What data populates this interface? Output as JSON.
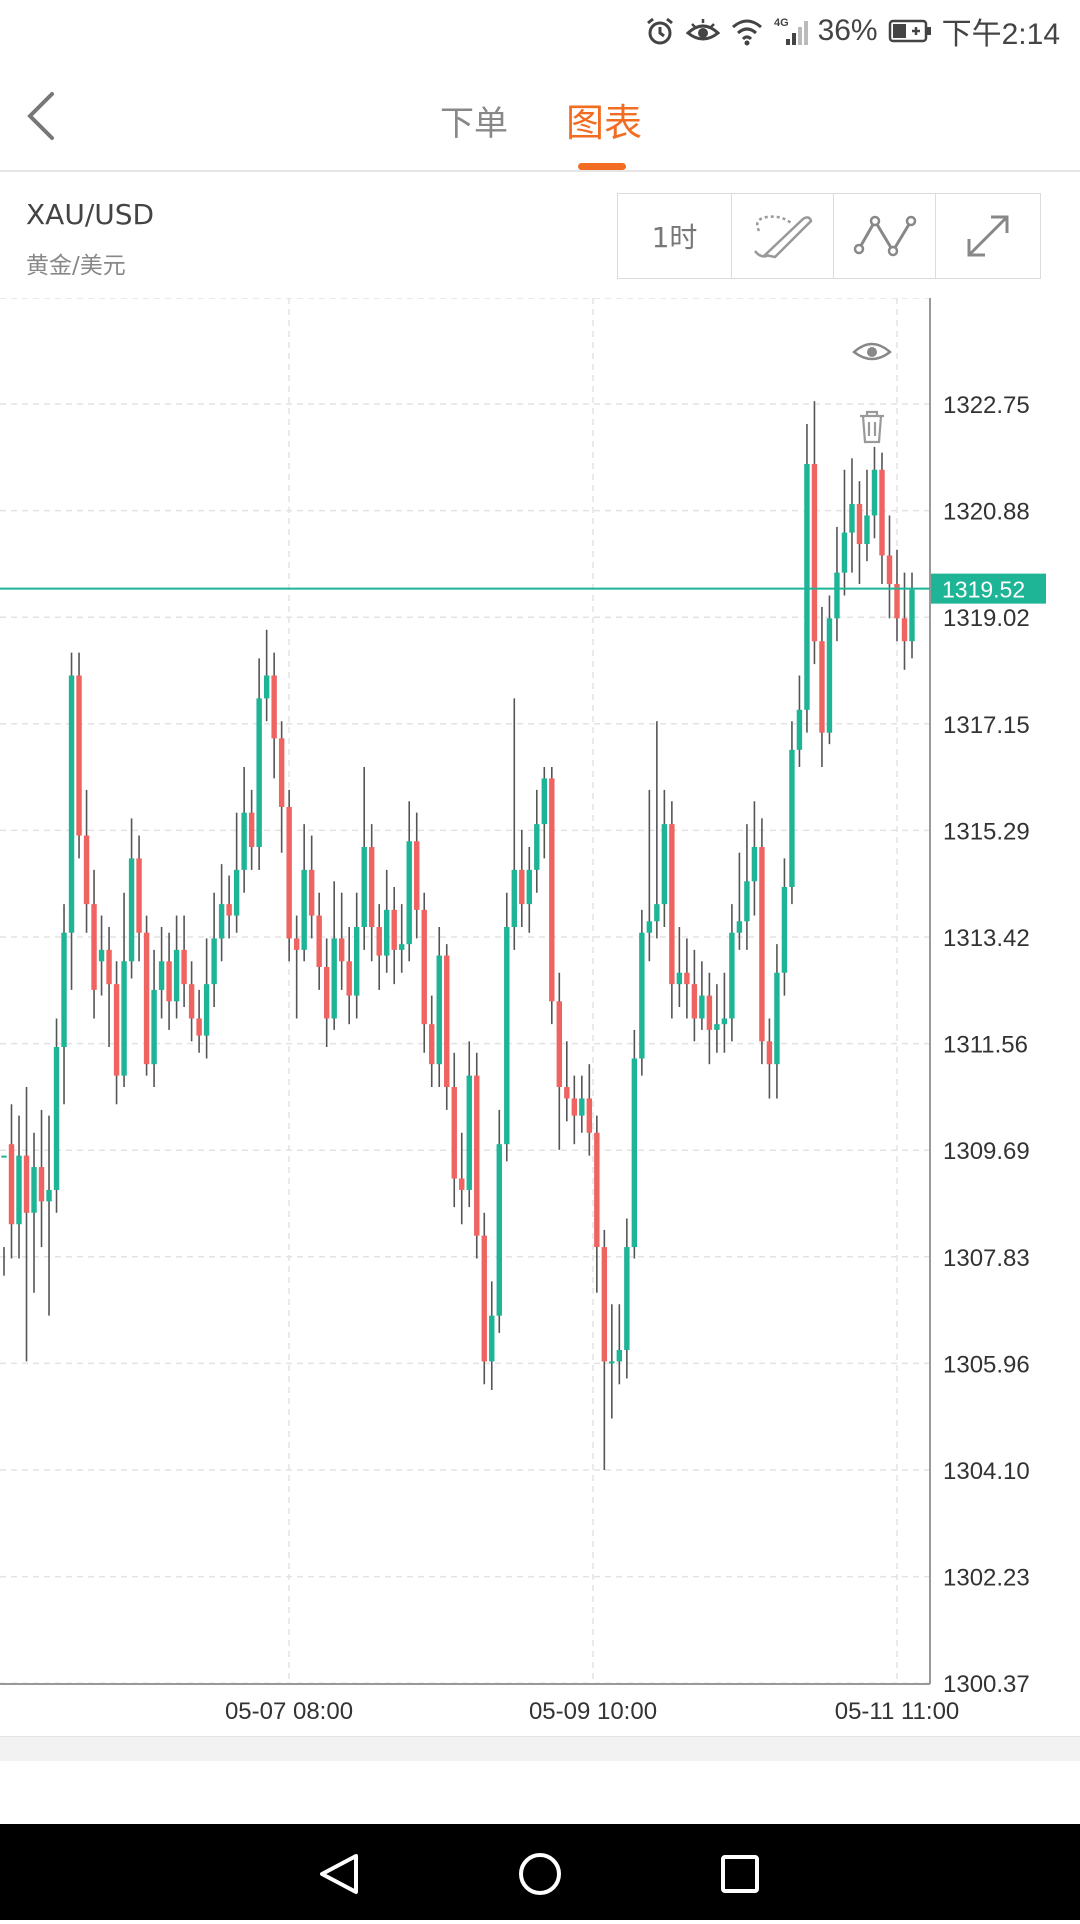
{
  "status_bar": {
    "icons": [
      "alarm-icon",
      "eye-icon",
      "wifi-icon",
      "signal-4g-icon",
      "battery-icon"
    ],
    "battery": "36%",
    "network": "4G",
    "time": "下午2:14"
  },
  "header": {
    "tabs": [
      {
        "label": "下单",
        "active": false
      },
      {
        "label": "图表",
        "active": true
      }
    ],
    "accent_color": "#f26d21"
  },
  "instrument": {
    "symbol": "XAU/USD",
    "name": "黄金/美元"
  },
  "toolbar": {
    "interval_label": "1时",
    "tools": [
      "draw-tool-icon",
      "indicator-icon",
      "fullscreen-icon"
    ]
  },
  "chart_data": {
    "type": "candlestick",
    "interval": "1时",
    "current_price": "1319.52",
    "y_tick_labels": [
      "1322.75",
      "1320.88",
      "1319.02",
      "1317.15",
      "1315.29",
      "1313.42",
      "1311.56",
      "1309.69",
      "1307.83",
      "1305.96",
      "1304.10",
      "1302.23",
      "1300.37"
    ],
    "ylim": [
      1300.37,
      1324.62
    ],
    "x_tick_labels": [
      "05-07 08:00",
      "05-09 10:00",
      "05-11 11:00"
    ],
    "up_color": "#1eb496",
    "down_color": "#ef6361",
    "candles": [
      [
        1309.6,
        1309.6,
        1308.0,
        1307.5
      ],
      [
        1309.8,
        1308.4,
        1310.5,
        1307.8
      ],
      [
        1308.4,
        1309.6,
        1310.3,
        1307.8
      ],
      [
        1309.6,
        1308.6,
        1310.8,
        1306.0
      ],
      [
        1308.6,
        1309.4,
        1310.0,
        1307.2
      ],
      [
        1309.4,
        1308.8,
        1310.4,
        1308.0
      ],
      [
        1308.8,
        1309.0,
        1310.3,
        1306.8
      ],
      [
        1309.0,
        1311.5,
        1312.0,
        1308.6
      ],
      [
        1311.5,
        1313.5,
        1314.0,
        1310.5
      ],
      [
        1313.5,
        1318.0,
        1318.4,
        1312.5
      ],
      [
        1318.0,
        1315.2,
        1318.4,
        1314.8
      ],
      [
        1315.2,
        1314.0,
        1316.0,
        1313.5
      ],
      [
        1314.0,
        1312.5,
        1314.6,
        1312.0
      ],
      [
        1313.0,
        1313.2,
        1313.8,
        1312.4
      ],
      [
        1313.2,
        1312.6,
        1313.6,
        1311.5
      ],
      [
        1312.6,
        1311.0,
        1313.0,
        1310.5
      ],
      [
        1311.0,
        1313.0,
        1314.2,
        1310.8
      ],
      [
        1313.0,
        1314.8,
        1315.5,
        1312.7
      ],
      [
        1314.8,
        1313.5,
        1315.2,
        1313.0
      ],
      [
        1313.5,
        1311.2,
        1313.8,
        1311.0
      ],
      [
        1311.2,
        1312.5,
        1313.2,
        1310.8
      ],
      [
        1312.5,
        1313.0,
        1313.6,
        1312.0
      ],
      [
        1313.0,
        1312.3,
        1313.5,
        1311.8
      ],
      [
        1312.3,
        1313.2,
        1313.8,
        1312.0
      ],
      [
        1313.2,
        1312.6,
        1313.8,
        1312.2
      ],
      [
        1312.6,
        1312.0,
        1313.0,
        1311.6
      ],
      [
        1312.0,
        1311.7,
        1312.5,
        1311.4
      ],
      [
        1311.7,
        1312.6,
        1313.4,
        1311.3
      ],
      [
        1312.6,
        1313.4,
        1314.2,
        1312.2
      ],
      [
        1313.4,
        1314.0,
        1314.7,
        1313.0
      ],
      [
        1314.0,
        1313.8,
        1314.5,
        1313.4
      ],
      [
        1313.8,
        1314.6,
        1315.6,
        1313.5
      ],
      [
        1314.6,
        1315.6,
        1316.4,
        1314.2
      ],
      [
        1315.6,
        1315.0,
        1316.0,
        1314.6
      ],
      [
        1315.0,
        1317.6,
        1318.3,
        1314.6
      ],
      [
        1317.6,
        1318.0,
        1318.8,
        1317.2
      ],
      [
        1318.0,
        1316.9,
        1318.4,
        1316.2
      ],
      [
        1316.9,
        1315.7,
        1317.2,
        1314.9
      ],
      [
        1315.7,
        1313.4,
        1316.0,
        1313.0
      ],
      [
        1313.4,
        1313.2,
        1313.8,
        1312.0
      ],
      [
        1313.2,
        1314.6,
        1315.4,
        1313.0
      ],
      [
        1314.6,
        1313.8,
        1315.2,
        1313.4
      ],
      [
        1313.8,
        1312.9,
        1314.2,
        1312.5
      ],
      [
        1312.9,
        1312.0,
        1313.4,
        1311.5
      ],
      [
        1312.0,
        1313.4,
        1314.4,
        1311.8
      ],
      [
        1313.4,
        1313.0,
        1314.2,
        1312.5
      ],
      [
        1313.0,
        1312.4,
        1313.6,
        1311.9
      ],
      [
        1312.4,
        1313.6,
        1314.2,
        1312.0
      ],
      [
        1313.6,
        1315.0,
        1316.4,
        1313.2
      ],
      [
        1315.0,
        1313.6,
        1315.4,
        1313.0
      ],
      [
        1313.6,
        1313.1,
        1314.0,
        1312.5
      ],
      [
        1313.1,
        1313.9,
        1314.6,
        1312.8
      ],
      [
        1313.9,
        1313.2,
        1314.3,
        1312.6
      ],
      [
        1313.2,
        1313.3,
        1314.0,
        1312.8
      ],
      [
        1313.3,
        1315.1,
        1315.8,
        1313.0
      ],
      [
        1315.1,
        1313.9,
        1315.6,
        1313.4
      ],
      [
        1313.9,
        1311.9,
        1314.2,
        1311.4
      ],
      [
        1311.9,
        1311.2,
        1312.4,
        1310.8
      ],
      [
        1311.2,
        1313.1,
        1313.6,
        1310.8
      ],
      [
        1313.1,
        1310.8,
        1313.3,
        1310.4
      ],
      [
        1310.8,
        1309.2,
        1311.4,
        1308.7
      ],
      [
        1309.2,
        1309.0,
        1310.0,
        1308.4
      ],
      [
        1309.0,
        1311.0,
        1311.6,
        1308.7
      ],
      [
        1311.0,
        1308.2,
        1311.4,
        1307.8
      ],
      [
        1308.2,
        1306.0,
        1308.6,
        1305.6
      ],
      [
        1306.0,
        1306.8,
        1307.4,
        1305.5
      ],
      [
        1306.8,
        1309.8,
        1310.4,
        1306.5
      ],
      [
        1309.8,
        1313.6,
        1314.2,
        1309.5
      ],
      [
        1313.6,
        1314.6,
        1317.6,
        1313.2
      ],
      [
        1314.6,
        1314.0,
        1315.3,
        1313.6
      ],
      [
        1314.0,
        1314.6,
        1315.0,
        1313.5
      ],
      [
        1314.6,
        1315.4,
        1316.0,
        1314.2
      ],
      [
        1315.4,
        1316.2,
        1316.4,
        1314.8
      ],
      [
        1316.2,
        1312.3,
        1316.4,
        1311.9
      ],
      [
        1312.3,
        1310.8,
        1312.8,
        1309.7
      ],
      [
        1310.8,
        1310.6,
        1311.6,
        1310.2
      ],
      [
        1310.6,
        1310.3,
        1311.0,
        1309.8
      ],
      [
        1310.3,
        1310.6,
        1311.0,
        1310.0
      ],
      [
        1310.6,
        1310.0,
        1311.2,
        1309.6
      ],
      [
        1310.0,
        1308.0,
        1310.3,
        1307.2
      ],
      [
        1308.0,
        1306.0,
        1308.3,
        1304.1
      ],
      [
        1306.0,
        1306.0,
        1307.0,
        1305.0
      ],
      [
        1306.0,
        1306.2,
        1307.0,
        1305.6
      ],
      [
        1306.2,
        1308.0,
        1308.5,
        1305.7
      ],
      [
        1308.0,
        1311.3,
        1311.8,
        1307.8
      ],
      [
        1311.3,
        1313.5,
        1313.9,
        1311.0
      ],
      [
        1313.5,
        1313.7,
        1316.0,
        1313.0
      ],
      [
        1313.7,
        1314.0,
        1317.2,
        1313.4
      ],
      [
        1314.0,
        1315.4,
        1316.0,
        1313.6
      ],
      [
        1315.4,
        1312.6,
        1315.8,
        1312.0
      ],
      [
        1312.6,
        1312.8,
        1313.6,
        1312.2
      ],
      [
        1312.8,
        1312.6,
        1313.4,
        1312.0
      ],
      [
        1312.6,
        1312.0,
        1313.2,
        1311.6
      ],
      [
        1312.0,
        1312.4,
        1313.0,
        1311.8
      ],
      [
        1312.4,
        1311.8,
        1312.8,
        1311.2
      ],
      [
        1311.8,
        1311.9,
        1312.6,
        1311.4
      ],
      [
        1311.9,
        1312.0,
        1312.8,
        1311.4
      ],
      [
        1312.0,
        1313.5,
        1314.0,
        1311.6
      ],
      [
        1313.5,
        1313.7,
        1314.9,
        1313.2
      ],
      [
        1313.7,
        1314.4,
        1315.4,
        1313.2
      ],
      [
        1314.4,
        1315.0,
        1315.8,
        1313.8
      ],
      [
        1315.0,
        1311.6,
        1315.5,
        1311.2
      ],
      [
        1311.6,
        1311.2,
        1312.0,
        1310.6
      ],
      [
        1311.2,
        1312.8,
        1313.3,
        1310.6
      ],
      [
        1312.8,
        1314.3,
        1314.8,
        1312.4
      ],
      [
        1314.3,
        1316.7,
        1317.2,
        1314.0
      ],
      [
        1316.7,
        1317.4,
        1318.0,
        1316.4
      ],
      [
        1317.4,
        1321.7,
        1322.4,
        1317.0
      ],
      [
        1321.7,
        1318.6,
        1322.8,
        1318.2
      ],
      [
        1318.6,
        1317.0,
        1319.2,
        1316.4
      ],
      [
        1317.0,
        1319.0,
        1319.4,
        1316.8
      ],
      [
        1319.0,
        1319.8,
        1320.6,
        1318.6
      ],
      [
        1319.8,
        1320.5,
        1321.6,
        1319.4
      ],
      [
        1320.5,
        1321.0,
        1321.8,
        1319.8
      ],
      [
        1321.0,
        1320.3,
        1321.4,
        1319.6
      ],
      [
        1320.3,
        1320.8,
        1321.6,
        1320.0
      ],
      [
        1320.8,
        1321.6,
        1322.0,
        1320.4
      ],
      [
        1321.6,
        1320.1,
        1321.9,
        1319.6
      ],
      [
        1320.1,
        1319.6,
        1320.8,
        1319.0
      ],
      [
        1319.6,
        1319.0,
        1320.2,
        1318.6
      ],
      [
        1319.0,
        1318.6,
        1319.8,
        1318.1
      ],
      [
        1318.6,
        1319.5,
        1319.8,
        1318.3
      ]
    ]
  }
}
